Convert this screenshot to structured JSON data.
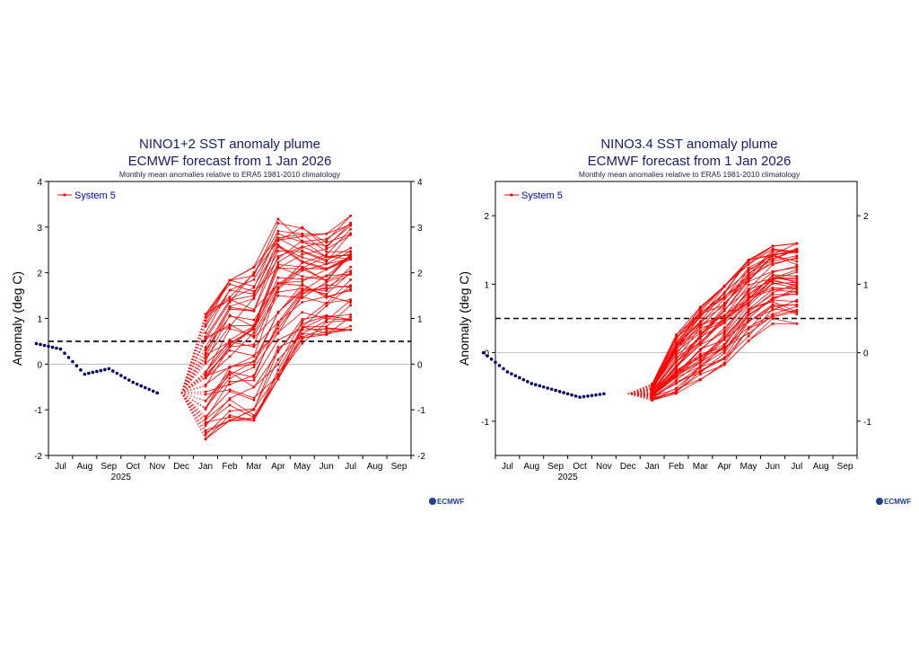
{
  "chart_data": [
    {
      "type": "line",
      "title": "NINO1+2 SST anomaly plume",
      "subtitle": "ECMWF forecast from 1 Jan 2026",
      "note": "Monthly mean anomalies relative to ERA5 1981-2010 climatology",
      "ylabel": "Anomaly (deg C)",
      "ylim": [
        -2,
        4
      ],
      "yticks": [
        "-2",
        "-1",
        "0",
        "1",
        "2",
        "3",
        "4"
      ],
      "months": [
        "Jul",
        "Aug",
        "Sep",
        "Oct",
        "Nov",
        "Dec",
        "Jan",
        "Feb",
        "Mar",
        "Apr",
        "May",
        "Jun",
        "Jul",
        "Aug",
        "Sep"
      ],
      "year_label": "2025",
      "threshold": 0.5,
      "legend": "System 5",
      "legend_position": "top-left",
      "observed": {
        "x": [
          0,
          1,
          2,
          3,
          4,
          5
        ],
        "y": [
          0.45,
          0.33,
          -0.22,
          -0.1,
          -0.4,
          -0.63
        ]
      },
      "ensemble_start_x": 6,
      "ensemble_stats": {
        "x": [
          6,
          7,
          8,
          9,
          10,
          11,
          12
        ],
        "min": [
          -1.7,
          -1.3,
          -1.3,
          -0.4,
          0.4,
          0.6,
          0.7
        ],
        "max": [
          1.15,
          1.9,
          2.2,
          3.25,
          3.05,
          2.9,
          3.3
        ]
      },
      "members": 51,
      "colors": {
        "forecast": "#ff0000",
        "observed": "#000070",
        "title": "#1a1a6e",
        "legend_text": "#0000cc"
      },
      "logo": "ECMWF"
    },
    {
      "type": "line",
      "title": "NINO3.4 SST anomaly plume",
      "subtitle": "ECMWF forecast from 1 Jan 2026",
      "note": "Monthly mean anomalies relative to ERA5 1981-2010 climatology",
      "ylabel": "Anomaly (deg C)",
      "ylim": [
        -1.5,
        2.5
      ],
      "yticks": [
        "-1",
        "0",
        "1",
        "2"
      ],
      "months": [
        "Jul",
        "Aug",
        "Sep",
        "Oct",
        "Nov",
        "Dec",
        "Jan",
        "Feb",
        "Mar",
        "Apr",
        "May",
        "Jun",
        "Jul",
        "Aug",
        "Sep"
      ],
      "year_label": "2025",
      "threshold": 0.5,
      "legend": "System 5",
      "legend_position": "top-left",
      "observed": {
        "x": [
          0,
          1,
          2,
          3,
          4,
          5
        ],
        "y": [
          0.0,
          -0.28,
          -0.45,
          -0.55,
          -0.65,
          -0.6
        ]
      },
      "ensemble_start_x": 6,
      "ensemble_stats": {
        "x": [
          6,
          7,
          8,
          9,
          10,
          11,
          12
        ],
        "min": [
          -0.7,
          -0.65,
          -0.42,
          -0.2,
          0.15,
          0.4,
          0.4
        ],
        "max": [
          -0.45,
          0.28,
          0.7,
          1.0,
          1.38,
          1.58,
          1.62
        ]
      },
      "members": 51,
      "colors": {
        "forecast": "#ff0000",
        "observed": "#000070",
        "title": "#1a1a6e",
        "legend_text": "#0000cc"
      },
      "logo": "ECMWF"
    }
  ]
}
